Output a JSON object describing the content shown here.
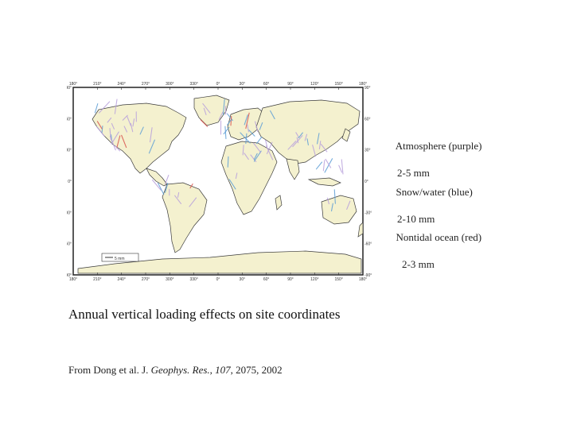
{
  "map": {
    "top_longitude_labels": [
      "180°",
      "210°",
      "240°",
      "270°",
      "300°",
      "330°",
      "0°",
      "30°",
      "60°",
      "90°",
      "120°",
      "150°",
      "180°"
    ],
    "bottom_longitude_labels": [
      "180°",
      "210°",
      "240°",
      "270°",
      "300°",
      "330°",
      "0°",
      "30°",
      "60°",
      "90°",
      "120°",
      "150°",
      "180°"
    ],
    "left_latitude_labels": [
      "90°",
      "60°",
      "30°",
      "0°",
      "-30°",
      "-60°",
      "-90°"
    ],
    "right_latitude_labels": [
      "90°",
      "60°",
      "30°",
      "0°",
      "-30°",
      "-60°",
      "-90°"
    ],
    "scale_label": "5 mm",
    "land_color": "#f4f1cf",
    "ocean_color": "#ffffff",
    "colors": {
      "atmosphere": "#b9a2dc",
      "snow_water": "#5f9fd6",
      "nontidal_ocean": "#d9544e"
    }
  },
  "legend": [
    {
      "name": "Atmosphere (purple)",
      "amplitude": "2-5 mm"
    },
    {
      "name": "Snow/water (blue)",
      "amplitude": "2-10 mm"
    },
    {
      "name": "Nontidal ocean (red)",
      "amplitude": "2-3 mm"
    }
  ],
  "caption": "Annual vertical loading effects on site coordinates",
  "source": {
    "prefix": "From Dong et al. J. ",
    "journal": "Geophys. Res.",
    "sep1": ", ",
    "volume": "107",
    "suffix": ", 2075, 2002"
  }
}
